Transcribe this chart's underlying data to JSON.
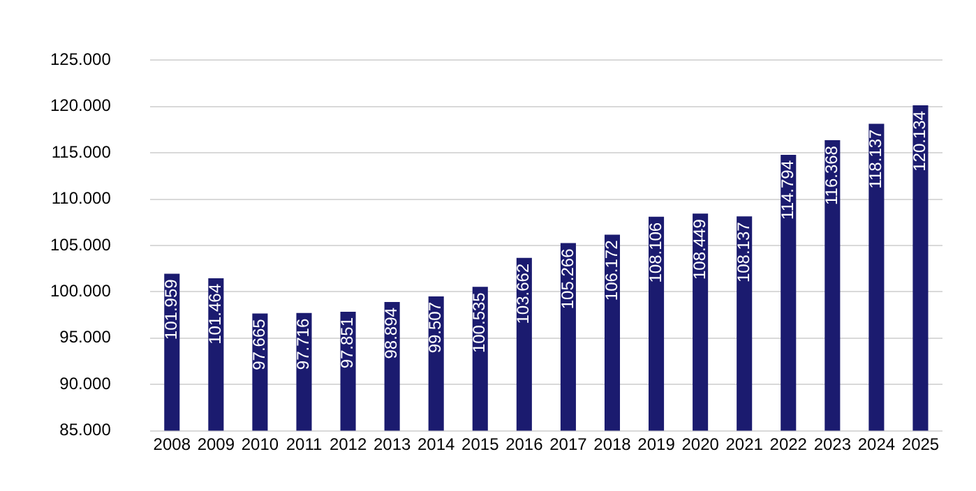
{
  "chart_data": {
    "type": "bar",
    "categories": [
      "2008",
      "2009",
      "2010",
      "2011",
      "2012",
      "2013",
      "2014",
      "2015",
      "2016",
      "2017",
      "2018",
      "2019",
      "2020",
      "2021",
      "2022",
      "2023",
      "2024",
      "2025"
    ],
    "values": [
      101959,
      101464,
      97665,
      97716,
      97851,
      98894,
      99507,
      100535,
      103662,
      105266,
      106172,
      108106,
      108449,
      108137,
      114794,
      116368,
      118137,
      120134
    ],
    "value_labels": [
      "101.959",
      "101.464",
      "97.665",
      "97.716",
      "97.851",
      "98.894",
      "99.507",
      "100.535",
      "103.662",
      "105.266",
      "106.172",
      "108.106",
      "108.449",
      "108.137",
      "114.794",
      "116.368",
      "118.137",
      "120.134"
    ],
    "color": "#1b1b6f",
    "ylim": [
      85000,
      125000
    ],
    "yticks": [
      {
        "value": 85000,
        "label": "85.000"
      },
      {
        "value": 90000,
        "label": "90.000"
      },
      {
        "value": 95000,
        "label": "95.000"
      },
      {
        "value": 100000,
        "label": "100.000"
      },
      {
        "value": 105000,
        "label": "105.000"
      },
      {
        "value": 110000,
        "label": "110.000"
      },
      {
        "value": 115000,
        "label": "115.000"
      },
      {
        "value": 120000,
        "label": "120.000"
      },
      {
        "value": 125000,
        "label": "125.000"
      }
    ],
    "grid": "y",
    "legend": false
  }
}
